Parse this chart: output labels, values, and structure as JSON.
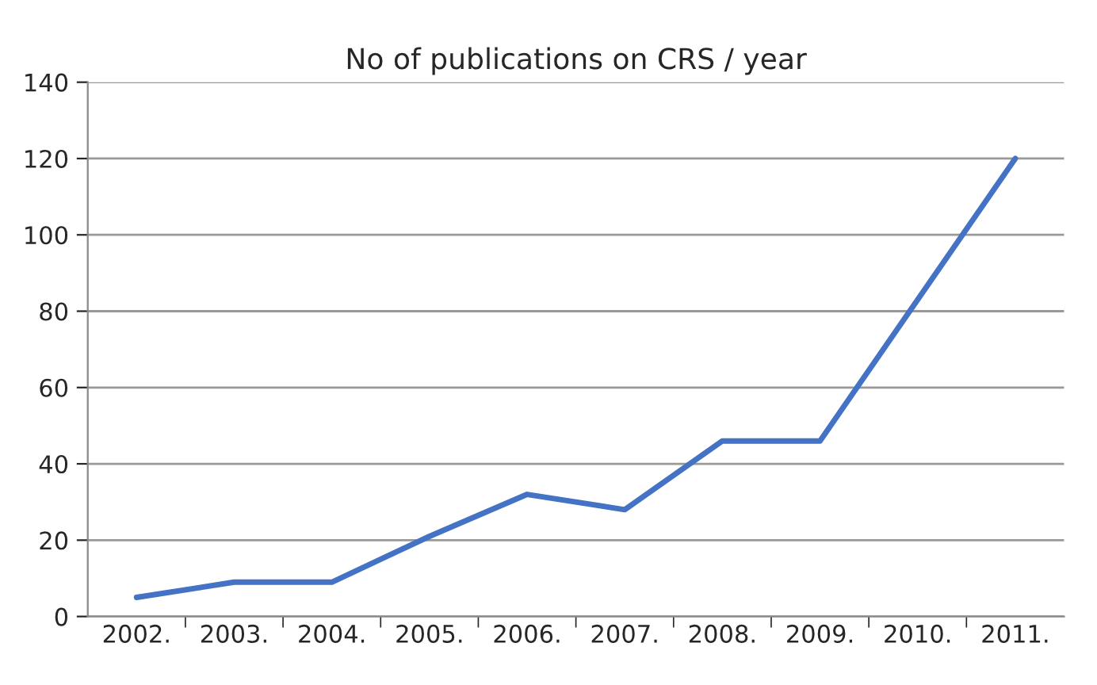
{
  "chart_data": {
    "type": "line",
    "title": "No of publications on CRS / year",
    "categories": [
      "2002.",
      "2003.",
      "2004.",
      "2005.",
      "2006.",
      "2007.",
      "2008.",
      "2009.",
      "2010.",
      "2011."
    ],
    "series": [
      {
        "color": "#4472c4",
        "values": [
          5,
          9,
          9,
          21,
          32,
          28,
          46,
          46,
          83,
          120
        ]
      }
    ],
    "ylim": [
      0,
      140
    ],
    "yticks": [
      0,
      20,
      40,
      60,
      80,
      100,
      120,
      140
    ],
    "grid": "y",
    "marker": "none",
    "line_style": "solid"
  }
}
